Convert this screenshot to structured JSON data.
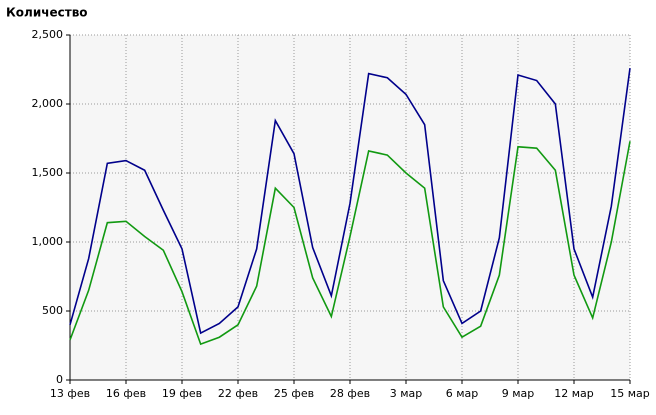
{
  "chart_data": {
    "type": "line",
    "title": "Количество",
    "categories": [
      "13 фев",
      null,
      null,
      "16 фев",
      null,
      null,
      "19 фев",
      null,
      null,
      "22 фев",
      null,
      null,
      "25 фев",
      null,
      null,
      "28 фев",
      null,
      null,
      "3 мар",
      null,
      null,
      "6 мар",
      null,
      null,
      "9 мар",
      null,
      null,
      "12 мар",
      null,
      null,
      "15 мар"
    ],
    "series": [
      {
        "color": "#00008b",
        "values": [
          400,
          880,
          1570,
          1590,
          1520,
          1230,
          950,
          340,
          410,
          530,
          950,
          1880,
          1640,
          960,
          610,
          1280,
          2220,
          2190,
          2070,
          1850,
          720,
          410,
          500,
          1030,
          2210,
          2170,
          2000,
          950,
          600,
          1260,
          2260
        ]
      },
      {
        "color": "#119911",
        "values": [
          290,
          650,
          1140,
          1150,
          1040,
          940,
          640,
          260,
          310,
          400,
          680,
          1390,
          1250,
          740,
          460,
          1040,
          1660,
          1630,
          1500,
          1390,
          530,
          310,
          390,
          760,
          1690,
          1680,
          1520,
          760,
          450,
          1000,
          1730
        ]
      }
    ],
    "ylim": [
      0,
      2500
    ],
    "yticks": [
      0,
      500,
      {
        "value": 1000,
        "label": "1,000"
      },
      {
        "value": 1500,
        "label": "1,500"
      },
      {
        "value": 2000,
        "label": "2,000"
      },
      {
        "value": 2500,
        "label": "2,500"
      }
    ],
    "grid": true
  }
}
